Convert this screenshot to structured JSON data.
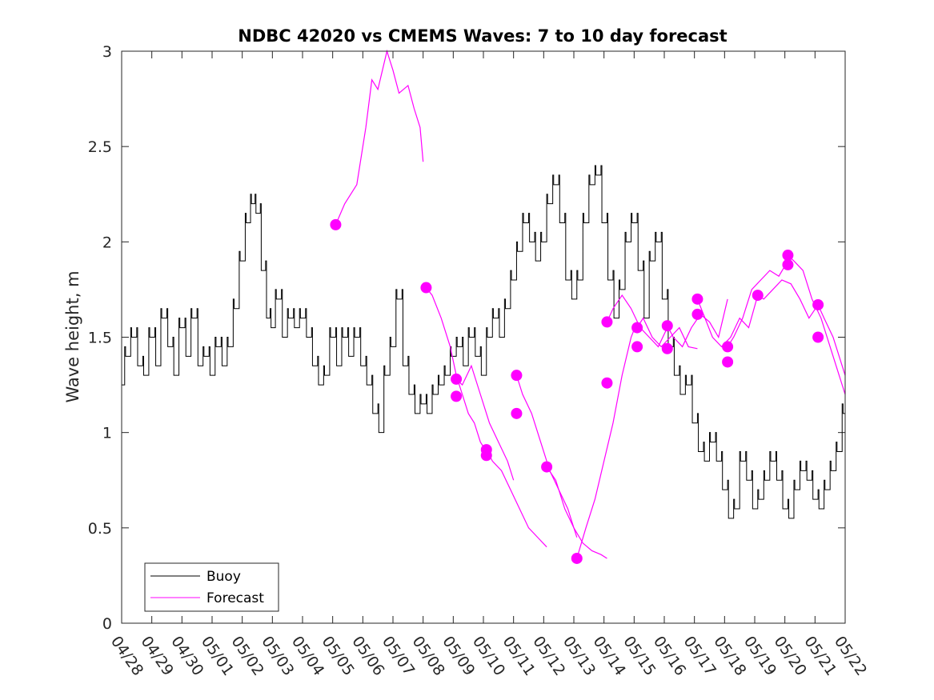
{
  "chart_data": {
    "type": "line",
    "title": "NDBC 42020 vs CMEMS Waves: 7 to 10 day forecast",
    "xlabel": "",
    "ylabel": "Wave height, m",
    "x_tick_labels": [
      "04/28",
      "04/29",
      "04/30",
      "05/01",
      "05/02",
      "05/03",
      "05/04",
      "05/05",
      "05/06",
      "05/07",
      "05/08",
      "05/09",
      "05/10",
      "05/11",
      "05/12",
      "05/13",
      "05/14",
      "05/15",
      "05/16",
      "05/17",
      "05/18",
      "05/19",
      "05/20",
      "05/21",
      "05/22"
    ],
    "y_tick_labels": [
      "0",
      "0.5",
      "1",
      "1.5",
      "2",
      "2.5",
      "3"
    ],
    "xlim_days": [
      0,
      24
    ],
    "ylim": [
      0,
      3
    ],
    "grid": false,
    "legend_position": "bottom-left",
    "colors": {
      "buoy": "#000000",
      "forecast": "#ff00ff",
      "axes": "#262626"
    },
    "series": [
      {
        "name": "Buoy",
        "color": "#000000",
        "points": [
          [
            0.0,
            1.25
          ],
          [
            0.2,
            1.4
          ],
          [
            0.4,
            1.5
          ],
          [
            0.6,
            1.35
          ],
          [
            0.8,
            1.3
          ],
          [
            1.0,
            1.5
          ],
          [
            1.2,
            1.35
          ],
          [
            1.4,
            1.6
          ],
          [
            1.6,
            1.45
          ],
          [
            1.8,
            1.3
          ],
          [
            2.0,
            1.55
          ],
          [
            2.2,
            1.4
          ],
          [
            2.4,
            1.6
          ],
          [
            2.6,
            1.35
          ],
          [
            2.8,
            1.4
          ],
          [
            3.0,
            1.3
          ],
          [
            3.2,
            1.45
          ],
          [
            3.4,
            1.35
          ],
          [
            3.6,
            1.45
          ],
          [
            3.8,
            1.65
          ],
          [
            4.0,
            1.9
          ],
          [
            4.2,
            2.1
          ],
          [
            4.35,
            2.2
          ],
          [
            4.5,
            2.15
          ],
          [
            4.7,
            1.85
          ],
          [
            4.85,
            1.6
          ],
          [
            5.0,
            1.55
          ],
          [
            5.2,
            1.7
          ],
          [
            5.4,
            1.5
          ],
          [
            5.6,
            1.6
          ],
          [
            5.8,
            1.55
          ],
          [
            6.0,
            1.6
          ],
          [
            6.2,
            1.5
          ],
          [
            6.4,
            1.35
          ],
          [
            6.6,
            1.25
          ],
          [
            6.8,
            1.3
          ],
          [
            7.0,
            1.5
          ],
          [
            7.2,
            1.35
          ],
          [
            7.4,
            1.5
          ],
          [
            7.6,
            1.4
          ],
          [
            7.8,
            1.5
          ],
          [
            8.0,
            1.35
          ],
          [
            8.2,
            1.25
          ],
          [
            8.4,
            1.1
          ],
          [
            8.6,
            1.0
          ],
          [
            8.8,
            1.3
          ],
          [
            9.0,
            1.45
          ],
          [
            9.2,
            1.7
          ],
          [
            9.4,
            1.35
          ],
          [
            9.6,
            1.2
          ],
          [
            9.8,
            1.1
          ],
          [
            10.0,
            1.15
          ],
          [
            10.2,
            1.1
          ],
          [
            10.4,
            1.2
          ],
          [
            10.6,
            1.25
          ],
          [
            10.8,
            1.3
          ],
          [
            11.0,
            1.4
          ],
          [
            11.2,
            1.45
          ],
          [
            11.4,
            1.35
          ],
          [
            11.6,
            1.5
          ],
          [
            11.8,
            1.4
          ],
          [
            12.0,
            1.3
          ],
          [
            12.2,
            1.5
          ],
          [
            12.4,
            1.6
          ],
          [
            12.6,
            1.5
          ],
          [
            12.8,
            1.65
          ],
          [
            13.0,
            1.8
          ],
          [
            13.2,
            1.95
          ],
          [
            13.4,
            2.1
          ],
          [
            13.6,
            2.0
          ],
          [
            13.8,
            1.9
          ],
          [
            14.0,
            2.0
          ],
          [
            14.2,
            2.2
          ],
          [
            14.4,
            2.3
          ],
          [
            14.6,
            2.1
          ],
          [
            14.8,
            1.8
          ],
          [
            15.0,
            1.7
          ],
          [
            15.2,
            1.8
          ],
          [
            15.4,
            2.1
          ],
          [
            15.6,
            2.3
          ],
          [
            15.8,
            2.35
          ],
          [
            16.0,
            2.1
          ],
          [
            16.2,
            1.8
          ],
          [
            16.4,
            1.6
          ],
          [
            16.6,
            1.75
          ],
          [
            16.8,
            2.0
          ],
          [
            17.0,
            2.1
          ],
          [
            17.2,
            1.85
          ],
          [
            17.4,
            1.6
          ],
          [
            17.6,
            1.9
          ],
          [
            17.8,
            2.0
          ],
          [
            18.0,
            1.7
          ],
          [
            18.2,
            1.45
          ],
          [
            18.4,
            1.3
          ],
          [
            18.6,
            1.2
          ],
          [
            18.8,
            1.25
          ],
          [
            19.0,
            1.05
          ],
          [
            19.2,
            0.9
          ],
          [
            19.4,
            0.85
          ],
          [
            19.6,
            0.95
          ],
          [
            19.8,
            0.85
          ],
          [
            20.0,
            0.7
          ],
          [
            20.2,
            0.55
          ],
          [
            20.4,
            0.6
          ],
          [
            20.6,
            0.85
          ],
          [
            20.8,
            0.75
          ],
          [
            21.0,
            0.6
          ],
          [
            21.2,
            0.65
          ],
          [
            21.4,
            0.75
          ],
          [
            21.6,
            0.85
          ],
          [
            21.8,
            0.75
          ],
          [
            22.0,
            0.6
          ],
          [
            22.2,
            0.55
          ],
          [
            22.4,
            0.7
          ],
          [
            22.6,
            0.8
          ],
          [
            22.8,
            0.75
          ],
          [
            23.0,
            0.65
          ],
          [
            23.2,
            0.6
          ],
          [
            23.4,
            0.7
          ],
          [
            23.6,
            0.8
          ],
          [
            23.8,
            0.9
          ],
          [
            24.0,
            1.1
          ]
        ]
      },
      {
        "name": "Forecast",
        "color": "#ff00ff",
        "points": []
      }
    ],
    "forecast_segments": [
      {
        "points": [
          [
            7.1,
            2.09
          ],
          [
            7.4,
            2.2
          ],
          [
            7.8,
            2.3
          ],
          [
            8.1,
            2.6
          ],
          [
            8.3,
            2.85
          ],
          [
            8.5,
            2.8
          ],
          [
            8.8,
            3.0
          ],
          [
            9.0,
            2.9
          ],
          [
            9.2,
            2.78
          ],
          [
            9.5,
            2.82
          ],
          [
            9.7,
            2.7
          ],
          [
            9.9,
            2.6
          ],
          [
            10.0,
            2.42
          ]
        ],
        "markers": [
          [
            7.1,
            2.09
          ]
        ]
      },
      {
        "points": [
          [
            10.1,
            1.76
          ],
          [
            10.3,
            1.72
          ],
          [
            10.6,
            1.6
          ],
          [
            10.9,
            1.45
          ],
          [
            11.1,
            1.3
          ],
          [
            11.3,
            1.2
          ],
          [
            11.5,
            1.1
          ],
          [
            11.7,
            1.05
          ],
          [
            11.9,
            0.95
          ],
          [
            12.1,
            0.9
          ]
        ],
        "markers": [
          [
            10.1,
            1.76
          ]
        ]
      },
      {
        "points": [
          [
            11.1,
            1.28
          ],
          [
            11.3,
            1.25
          ],
          [
            11.6,
            1.35
          ],
          [
            11.9,
            1.2
          ],
          [
            12.2,
            1.05
          ],
          [
            12.5,
            0.95
          ],
          [
            12.8,
            0.85
          ],
          [
            13.0,
            0.75
          ]
        ],
        "markers": [
          [
            11.1,
            1.28
          ],
          [
            11.1,
            1.19
          ]
        ]
      },
      {
        "points": [
          [
            12.1,
            0.91
          ],
          [
            12.3,
            0.85
          ],
          [
            12.6,
            0.8
          ],
          [
            12.9,
            0.7
          ],
          [
            13.2,
            0.6
          ],
          [
            13.5,
            0.5
          ],
          [
            13.8,
            0.45
          ],
          [
            14.1,
            0.4
          ]
        ],
        "markers": [
          [
            12.1,
            0.91
          ],
          [
            12.1,
            0.88
          ]
        ]
      },
      {
        "points": [
          [
            13.1,
            1.3
          ],
          [
            13.3,
            1.2
          ],
          [
            13.6,
            1.1
          ],
          [
            13.9,
            0.95
          ],
          [
            14.2,
            0.8
          ],
          [
            14.5,
            0.7
          ],
          [
            14.8,
            0.6
          ],
          [
            15.1,
            0.45
          ]
        ],
        "markers": [
          [
            13.1,
            1.3
          ],
          [
            13.1,
            1.1
          ]
        ]
      },
      {
        "points": [
          [
            14.1,
            0.82
          ],
          [
            14.4,
            0.75
          ],
          [
            14.7,
            0.6
          ],
          [
            15.0,
            0.5
          ],
          [
            15.3,
            0.42
          ],
          [
            15.6,
            0.38
          ],
          [
            15.9,
            0.36
          ],
          [
            16.1,
            0.34
          ]
        ],
        "markers": [
          [
            14.1,
            0.82
          ]
        ]
      },
      {
        "points": [
          [
            15.1,
            0.34
          ],
          [
            15.4,
            0.5
          ],
          [
            15.7,
            0.65
          ],
          [
            16.0,
            0.85
          ],
          [
            16.3,
            1.05
          ],
          [
            16.6,
            1.3
          ],
          [
            16.9,
            1.5
          ],
          [
            17.1,
            1.58
          ]
        ],
        "markers": [
          [
            15.1,
            0.34
          ]
        ]
      },
      {
        "points": [
          [
            16.1,
            1.58
          ],
          [
            16.3,
            1.65
          ],
          [
            16.6,
            1.72
          ],
          [
            16.9,
            1.65
          ],
          [
            17.2,
            1.55
          ],
          [
            17.5,
            1.5
          ],
          [
            17.8,
            1.45
          ],
          [
            18.1,
            1.55
          ]
        ],
        "markers": [
          [
            16.1,
            1.58
          ],
          [
            16.1,
            1.26
          ]
        ]
      },
      {
        "points": [
          [
            17.1,
            1.55
          ],
          [
            17.3,
            1.6
          ],
          [
            17.6,
            1.5
          ],
          [
            17.9,
            1.45
          ],
          [
            18.2,
            1.5
          ],
          [
            18.5,
            1.55
          ],
          [
            18.8,
            1.45
          ],
          [
            19.1,
            1.44
          ]
        ],
        "markers": [
          [
            17.1,
            1.55
          ],
          [
            17.1,
            1.45
          ]
        ]
      },
      {
        "points": [
          [
            18.1,
            1.56
          ],
          [
            18.3,
            1.5
          ],
          [
            18.6,
            1.45
          ],
          [
            18.9,
            1.55
          ],
          [
            19.2,
            1.62
          ],
          [
            19.5,
            1.58
          ],
          [
            19.8,
            1.5
          ],
          [
            20.1,
            1.7
          ]
        ],
        "markers": [
          [
            18.1,
            1.56
          ],
          [
            18.1,
            1.44
          ]
        ]
      },
      {
        "points": [
          [
            19.1,
            1.7
          ],
          [
            19.3,
            1.62
          ],
          [
            19.6,
            1.5
          ],
          [
            19.9,
            1.45
          ],
          [
            20.2,
            1.5
          ],
          [
            20.5,
            1.6
          ],
          [
            20.8,
            1.55
          ],
          [
            21.1,
            1.72
          ]
        ],
        "markers": [
          [
            19.1,
            1.7
          ],
          [
            19.1,
            1.62
          ]
        ]
      },
      {
        "points": [
          [
            20.1,
            1.45
          ],
          [
            20.3,
            1.5
          ],
          [
            20.6,
            1.6
          ],
          [
            20.9,
            1.75
          ],
          [
            21.2,
            1.8
          ],
          [
            21.5,
            1.85
          ],
          [
            21.8,
            1.82
          ],
          [
            22.1,
            1.9
          ]
        ],
        "markers": [
          [
            20.1,
            1.45
          ],
          [
            20.1,
            1.37
          ]
        ]
      },
      {
        "points": [
          [
            21.1,
            1.72
          ],
          [
            21.3,
            1.7
          ],
          [
            21.6,
            1.75
          ],
          [
            21.9,
            1.8
          ],
          [
            22.2,
            1.78
          ],
          [
            22.5,
            1.7
          ],
          [
            22.8,
            1.6
          ],
          [
            23.1,
            1.67
          ]
        ],
        "markers": [
          [
            21.1,
            1.72
          ]
        ]
      },
      {
        "points": [
          [
            22.1,
            1.93
          ],
          [
            22.3,
            1.9
          ],
          [
            22.6,
            1.85
          ],
          [
            22.9,
            1.7
          ],
          [
            23.2,
            1.6
          ],
          [
            23.5,
            1.45
          ],
          [
            23.8,
            1.3
          ],
          [
            24.0,
            1.2
          ]
        ],
        "markers": [
          [
            22.1,
            1.93
          ],
          [
            22.1,
            1.88
          ]
        ]
      },
      {
        "points": [
          [
            23.1,
            1.67
          ],
          [
            23.3,
            1.6
          ],
          [
            23.6,
            1.5
          ],
          [
            23.8,
            1.4
          ],
          [
            24.0,
            1.3
          ]
        ],
        "markers": [
          [
            23.1,
            1.67
          ],
          [
            23.1,
            1.5
          ]
        ]
      }
    ]
  }
}
